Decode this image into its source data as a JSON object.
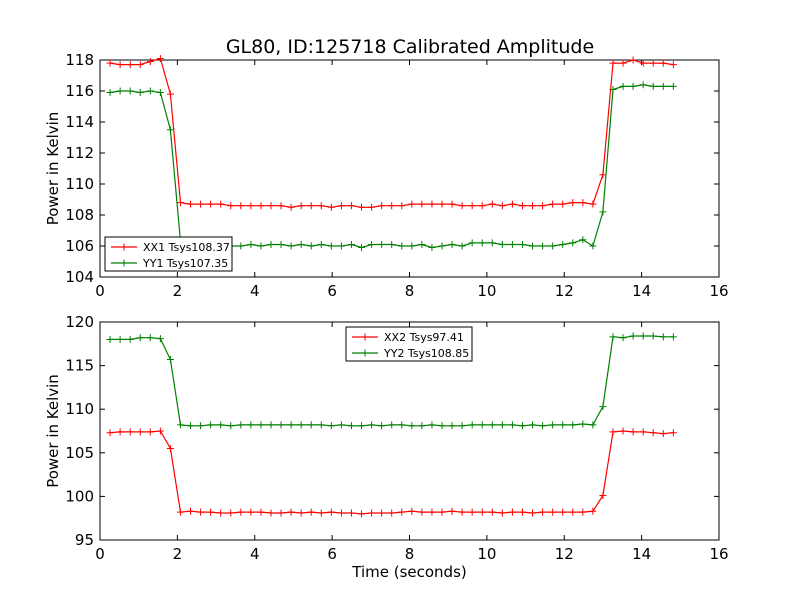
{
  "figure": {
    "title": "GL80, ID:125718 Calibrated Amplitude"
  },
  "chart_data": [
    {
      "type": "line",
      "title": "GL80, ID:125718 Calibrated Amplitude",
      "xlabel": "",
      "ylabel": "Power in Kelvin",
      "xlim": [
        0,
        16
      ],
      "ylim": [
        104,
        118
      ],
      "xticks": [
        "0",
        "2",
        "4",
        "6",
        "8",
        "10",
        "12",
        "14",
        "16"
      ],
      "yticks": [
        "104",
        "106",
        "108",
        "110",
        "112",
        "114",
        "116",
        "118"
      ],
      "legend_position": "lower-left",
      "x": [
        0.26,
        0.52,
        0.78,
        1.04,
        1.3,
        1.56,
        1.82,
        2.08,
        2.34,
        2.6,
        2.86,
        3.12,
        3.38,
        3.64,
        3.9,
        4.16,
        4.42,
        4.68,
        4.94,
        5.2,
        5.46,
        5.72,
        5.98,
        6.24,
        6.5,
        6.76,
        7.02,
        7.28,
        7.54,
        7.8,
        8.06,
        8.32,
        8.58,
        8.84,
        9.1,
        9.36,
        9.62,
        9.88,
        10.14,
        10.4,
        10.66,
        10.92,
        11.18,
        11.44,
        11.7,
        11.96,
        12.22,
        12.48,
        12.74,
        13.0,
        13.26,
        13.52,
        13.78,
        14.04,
        14.3,
        14.56,
        14.82
      ],
      "series": [
        {
          "name": "XX1 Tsys108.37",
          "color": "#ff0000",
          "values": [
            117.8,
            117.7,
            117.7,
            117.7,
            117.9,
            118.1,
            115.8,
            108.8,
            108.7,
            108.7,
            108.7,
            108.7,
            108.6,
            108.6,
            108.6,
            108.6,
            108.6,
            108.6,
            108.5,
            108.6,
            108.6,
            108.6,
            108.5,
            108.6,
            108.6,
            108.5,
            108.5,
            108.6,
            108.6,
            108.6,
            108.7,
            108.7,
            108.7,
            108.7,
            108.7,
            108.6,
            108.6,
            108.6,
            108.7,
            108.6,
            108.7,
            108.6,
            108.6,
            108.6,
            108.7,
            108.7,
            108.8,
            108.8,
            108.7,
            110.6,
            117.8,
            117.8,
            118.0,
            117.8,
            117.8,
            117.8,
            117.7
          ]
        },
        {
          "name": "YY1 Tsys107.35",
          "color": "#008000",
          "values": [
            115.9,
            116.0,
            116.0,
            115.9,
            116.0,
            115.9,
            113.5,
            106.3,
            106.1,
            106.0,
            106.0,
            106.1,
            106.0,
            106.0,
            106.1,
            106.0,
            106.1,
            106.1,
            106.0,
            106.1,
            106.0,
            106.1,
            106.0,
            106.0,
            106.1,
            105.9,
            106.1,
            106.1,
            106.1,
            106.0,
            106.0,
            106.1,
            105.9,
            106.0,
            106.1,
            106.0,
            106.2,
            106.2,
            106.2,
            106.1,
            106.1,
            106.1,
            106.0,
            106.0,
            106.0,
            106.1,
            106.2,
            106.4,
            106.0,
            108.2,
            116.1,
            116.3,
            116.3,
            116.4,
            116.3,
            116.3,
            116.3
          ]
        }
      ]
    },
    {
      "type": "line",
      "title": "",
      "xlabel": "Time (seconds)",
      "ylabel": "Power in Kelvin",
      "xlim": [
        0,
        16
      ],
      "ylim": [
        95,
        120
      ],
      "xticks": [
        "0",
        "2",
        "4",
        "6",
        "8",
        "10",
        "12",
        "14",
        "16"
      ],
      "yticks": [
        "95",
        "100",
        "105",
        "110",
        "115",
        "120"
      ],
      "legend_position": "upper-center",
      "x": [
        0.26,
        0.52,
        0.78,
        1.04,
        1.3,
        1.56,
        1.82,
        2.08,
        2.34,
        2.6,
        2.86,
        3.12,
        3.38,
        3.64,
        3.9,
        4.16,
        4.42,
        4.68,
        4.94,
        5.2,
        5.46,
        5.72,
        5.98,
        6.24,
        6.5,
        6.76,
        7.02,
        7.28,
        7.54,
        7.8,
        8.06,
        8.32,
        8.58,
        8.84,
        9.1,
        9.36,
        9.62,
        9.88,
        10.14,
        10.4,
        10.66,
        10.92,
        11.18,
        11.44,
        11.7,
        11.96,
        12.22,
        12.48,
        12.74,
        13.0,
        13.26,
        13.52,
        13.78,
        14.04,
        14.3,
        14.56,
        14.82
      ],
      "series": [
        {
          "name": "XX2 Tsys97.41",
          "color": "#ff0000",
          "values": [
            107.3,
            107.4,
            107.4,
            107.4,
            107.4,
            107.5,
            105.5,
            98.2,
            98.3,
            98.2,
            98.2,
            98.1,
            98.1,
            98.2,
            98.2,
            98.2,
            98.1,
            98.1,
            98.2,
            98.1,
            98.2,
            98.1,
            98.2,
            98.1,
            98.1,
            98.0,
            98.1,
            98.1,
            98.1,
            98.2,
            98.3,
            98.2,
            98.2,
            98.2,
            98.3,
            98.2,
            98.2,
            98.2,
            98.2,
            98.1,
            98.2,
            98.2,
            98.1,
            98.2,
            98.2,
            98.2,
            98.2,
            98.2,
            98.3,
            100.1,
            107.4,
            107.5,
            107.4,
            107.4,
            107.3,
            107.2,
            107.3
          ]
        },
        {
          "name": "YY2 Tsys108.85",
          "color": "#008000",
          "values": [
            118.0,
            118.0,
            118.0,
            118.2,
            118.2,
            118.1,
            115.7,
            108.2,
            108.1,
            108.1,
            108.2,
            108.2,
            108.1,
            108.2,
            108.2,
            108.2,
            108.2,
            108.2,
            108.2,
            108.2,
            108.2,
            108.2,
            108.1,
            108.2,
            108.1,
            108.1,
            108.2,
            108.1,
            108.2,
            108.2,
            108.1,
            108.1,
            108.2,
            108.1,
            108.1,
            108.1,
            108.2,
            108.2,
            108.2,
            108.2,
            108.2,
            108.1,
            108.2,
            108.1,
            108.2,
            108.2,
            108.2,
            108.3,
            108.2,
            110.3,
            118.3,
            118.2,
            118.4,
            118.4,
            118.4,
            118.3,
            118.3
          ]
        }
      ]
    }
  ]
}
